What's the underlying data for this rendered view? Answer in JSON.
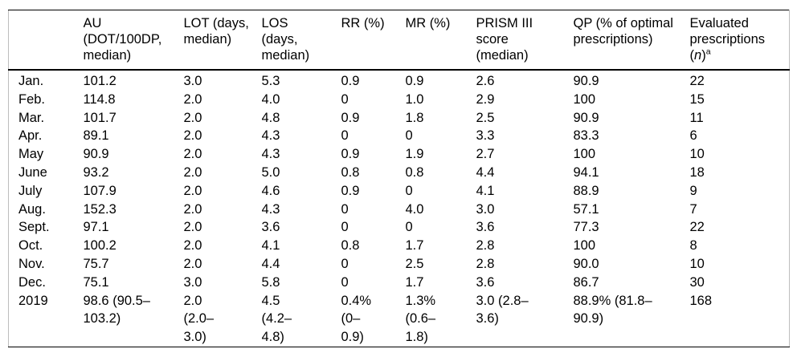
{
  "table": {
    "columns": [
      {
        "label": ""
      },
      {
        "label": "AU\n(DOT/100DP,\nmedian)"
      },
      {
        "label": "LOT (days,\nmedian)"
      },
      {
        "label": "LOS\n(days,\nmedian)"
      },
      {
        "label": "RR (%)"
      },
      {
        "label": "MR (%)"
      },
      {
        "label": "PRISM III\nscore\n(median)"
      },
      {
        "label": "QP (% of optimal\nprescriptions)"
      },
      {
        "label": "Evaluated\nprescriptions",
        "pre": "(",
        "italic": "n",
        "post": ")",
        "sup": "a"
      }
    ],
    "rows": [
      [
        "Jan.",
        "101.2",
        "3.0",
        "5.3",
        "0.9",
        "0.9",
        "2.6",
        "90.9",
        "22"
      ],
      [
        "Feb.",
        "114.8",
        "2.0",
        "4.0",
        "0",
        "1.0",
        "2.9",
        "100",
        "15"
      ],
      [
        "Mar.",
        "101.7",
        "2.0",
        "4.8",
        "0.9",
        "1.8",
        "2.5",
        "90.9",
        "11"
      ],
      [
        "Apr.",
        "89.1",
        "2.0",
        "4.3",
        "0",
        "0",
        "3.3",
        "83.3",
        "6"
      ],
      [
        "May",
        "90.9",
        "2.0",
        "4.3",
        "0.9",
        "1.9",
        "2.7",
        "100",
        "10"
      ],
      [
        "June",
        "93.2",
        "2.0",
        "5.0",
        "0.8",
        "0.8",
        "4.4",
        "94.1",
        "18"
      ],
      [
        "July",
        "107.9",
        "2.0",
        "4.6",
        "0.9",
        "0",
        "4.1",
        "88.9",
        "9"
      ],
      [
        "Aug.",
        "152.3",
        "2.0",
        "4.3",
        "0",
        "4.0",
        "3.0",
        "57.1",
        "7"
      ],
      [
        "Sept.",
        "97.1",
        "2.0",
        "3.6",
        "0",
        "0",
        "3.6",
        "77.3",
        "22"
      ],
      [
        "Oct.",
        "100.2",
        "2.0",
        "4.1",
        "0.8",
        "1.7",
        "2.8",
        "100",
        "8"
      ],
      [
        "Nov.",
        "75.7",
        "2.0",
        "4.4",
        "0",
        "2.5",
        "2.8",
        "90.0",
        "10"
      ],
      [
        "Dec.",
        "75.1",
        "3.0",
        "5.8",
        "0",
        "1.7",
        "3.6",
        "86.7",
        "30"
      ],
      [
        "2019",
        "98.6 (90.5–\n103.2)",
        "2.0\n(2.0–\n3.0)",
        "4.5\n(4.2–\n4.8)",
        "0.4%\n(0–\n0.9)",
        "1.3%\n(0.6–\n1.8)",
        "3.0 (2.8–\n3.6)",
        "88.9% (81.8–\n90.9)",
        "168"
      ]
    ]
  },
  "colors": {
    "text": "#000000",
    "rule": "#000000",
    "side_border": "#bdbdbd",
    "background": "#ffffff"
  }
}
